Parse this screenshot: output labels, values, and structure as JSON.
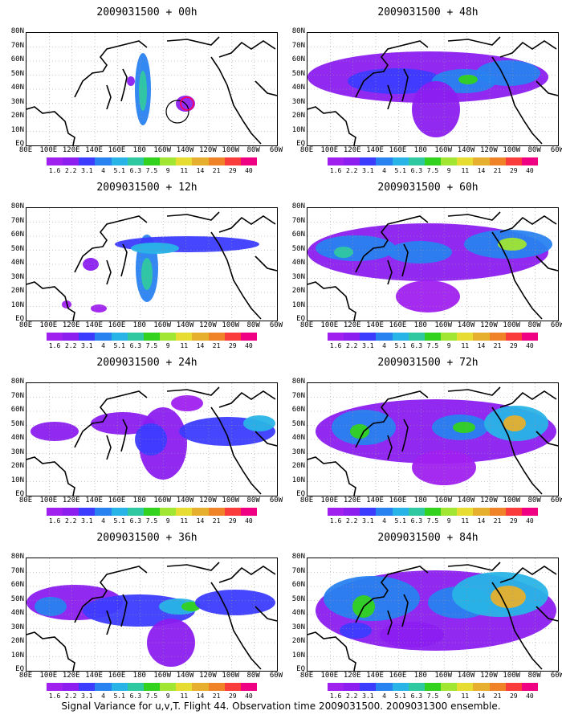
{
  "panels": [
    {
      "title": "2009031500 + 00h"
    },
    {
      "title": "2009031500 + 12h"
    },
    {
      "title": "2009031500 + 24h"
    },
    {
      "title": "2009031500 + 36h"
    },
    {
      "title": "2009031500 + 48h"
    },
    {
      "title": "2009031500 + 60h"
    },
    {
      "title": "2009031500 + 72h"
    },
    {
      "title": "2009031500 + 84h"
    }
  ],
  "lat_labels": [
    "80N",
    "70N",
    "60N",
    "50N",
    "40N",
    "30N",
    "20N",
    "10N",
    "EQ"
  ],
  "lon_labels": [
    "80E",
    "100E",
    "120E",
    "140E",
    "160E",
    "180",
    "160W",
    "140W",
    "120W",
    "100W",
    "80W",
    "60W"
  ],
  "colorbar": {
    "labels": [
      "1.6",
      "2.2",
      "3.1",
      "4",
      "5.1",
      "6.3",
      "7.5",
      "9",
      "11",
      "14",
      "21",
      "29",
      "40"
    ],
    "colors": [
      "#a020f0",
      "#8c1ef0",
      "#3c3cff",
      "#2882f0",
      "#28b4e6",
      "#2fc8a0",
      "#32d21e",
      "#a0e632",
      "#e6dc32",
      "#e6af2d",
      "#f08228",
      "#fa3c3c",
      "#f00082"
    ]
  },
  "caption": "Signal Variance for u,v,T. Flight 44. Observation time 2009031500. 2009031300 ensemble.",
  "chart_data": {
    "type": "heatmap",
    "variable": "Signal Variance for u,v,T",
    "flight": "44",
    "observation_time": "2009031500",
    "ensemble": "2009031300",
    "forecast_leads_h": [
      0,
      12,
      24,
      36,
      48,
      60,
      72,
      84
    ],
    "lon_range": [
      "80E",
      "60W"
    ],
    "lat_range": [
      "EQ",
      "80N"
    ],
    "levels": [
      1.6,
      2.2,
      3.1,
      4,
      5.1,
      6.3,
      7.5,
      9,
      11,
      14,
      21,
      29,
      40
    ]
  }
}
